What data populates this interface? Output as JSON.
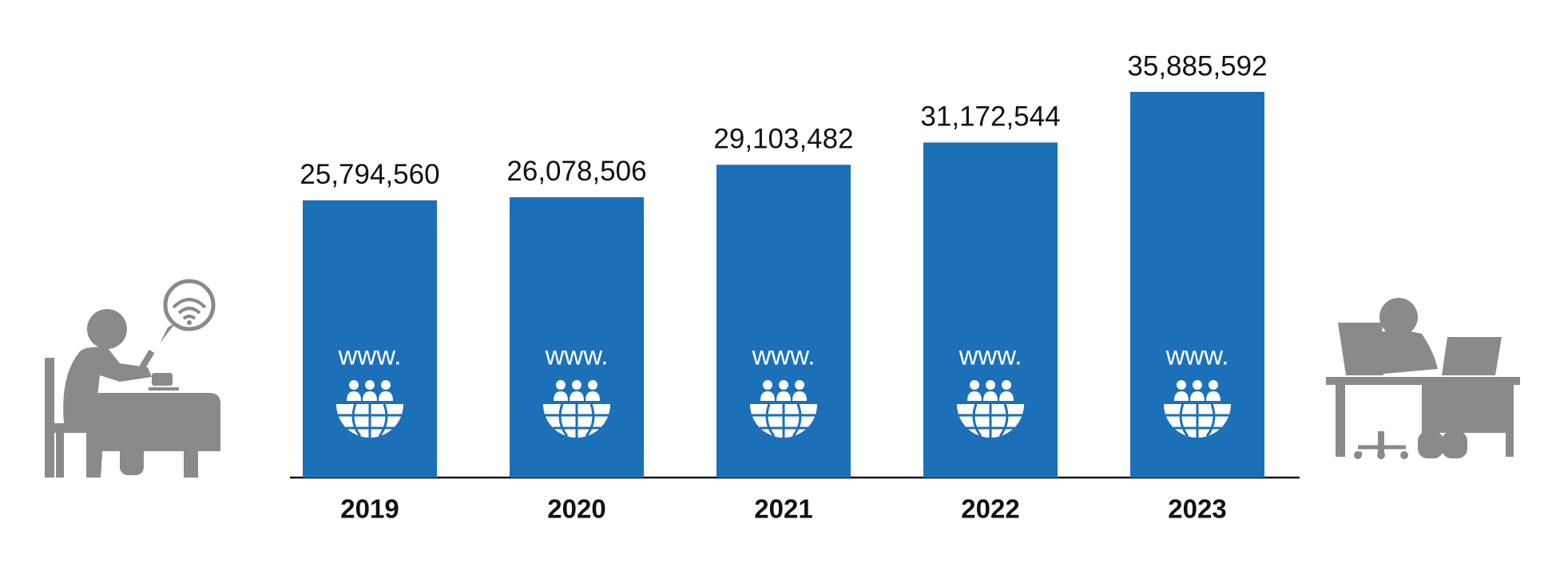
{
  "chart_data": {
    "type": "bar",
    "categories": [
      "2019",
      "2020",
      "2021",
      "2022",
      "2023"
    ],
    "values": [
      25794560,
      26078506,
      29103482,
      31172544,
      35885592
    ],
    "value_labels": [
      "25,794,560",
      "26,078,506",
      "29,103,482",
      "31,172,544",
      "35,885,592"
    ],
    "color": "#1b70b8",
    "icon_text": "www."
  }
}
